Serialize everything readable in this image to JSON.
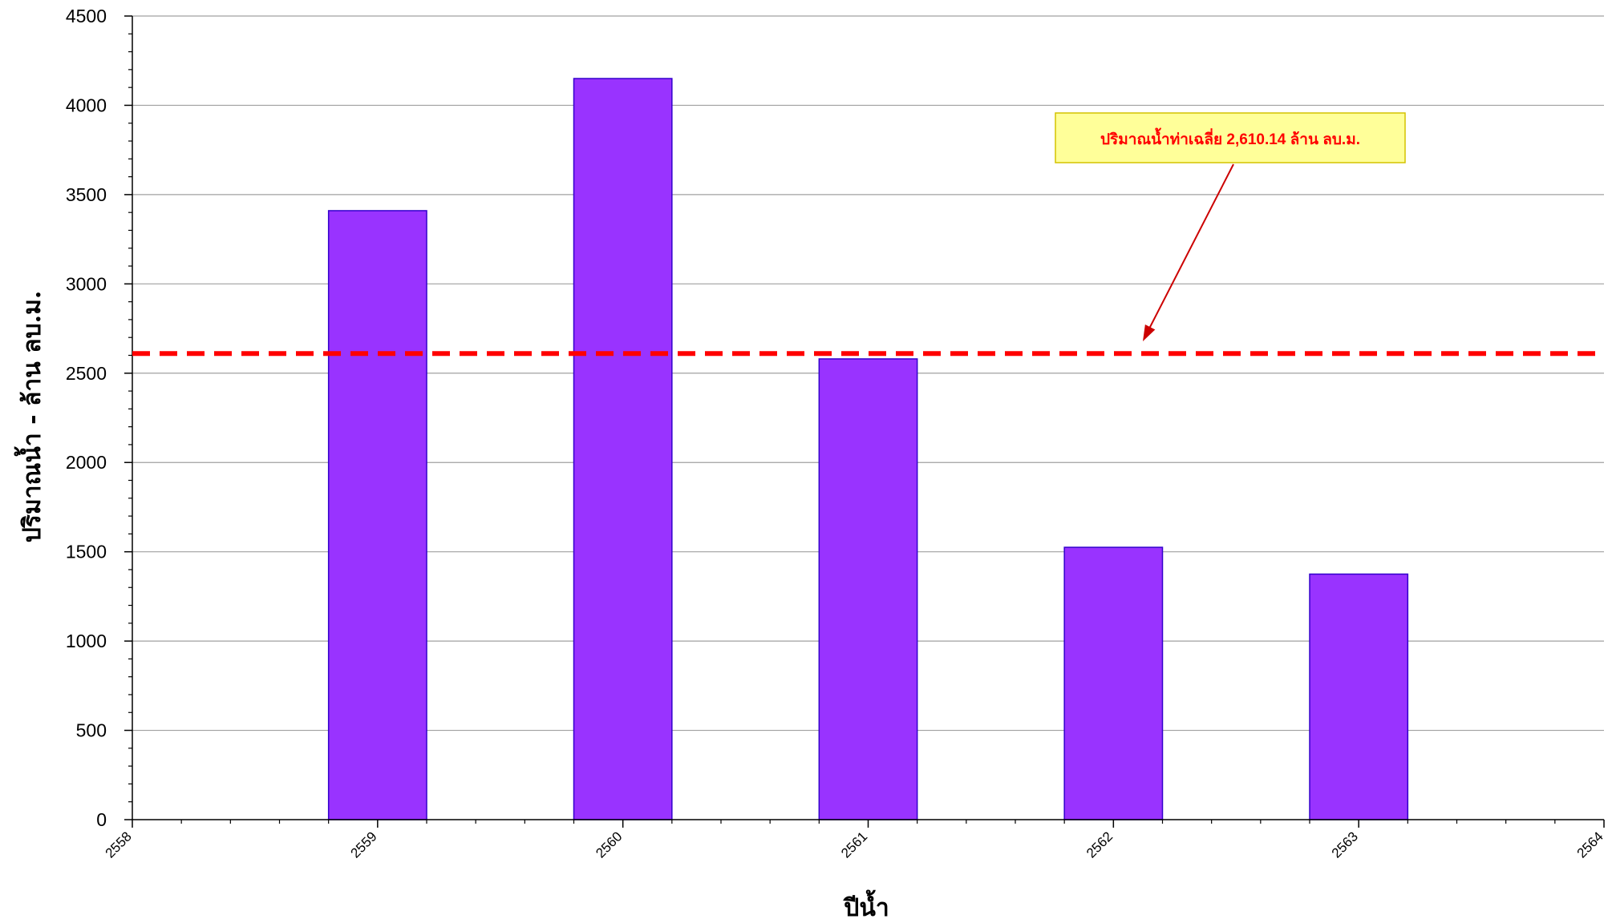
{
  "chart_data": {
    "type": "bar",
    "xlabel": "ปีน้ำ",
    "ylabel": "ปริมาณน้ำ  -  ล้าน ลบ.ม.",
    "xlim": [
      2558,
      2564
    ],
    "ylim": [
      0,
      4500
    ],
    "x_ticks": [
      2558,
      2559,
      2560,
      2561,
      2562,
      2563,
      2564
    ],
    "y_ticks": [
      0,
      500,
      1000,
      1500,
      2000,
      2500,
      3000,
      3500,
      4000,
      4500
    ],
    "grid": true,
    "series": [
      {
        "x": [
          2559,
          2560,
          2561,
          2562,
          2563
        ],
        "values": [
          3410,
          4150,
          2580,
          1525,
          1375
        ],
        "color": "#9933ff"
      }
    ],
    "reference_line": {
      "value": 2610.14,
      "color": "#ff0000",
      "style": "dashed"
    },
    "annotation": {
      "text": "ปริมาณน้ำท่าเฉลี่ย 2,610.14 ล้าน ลบ.ม.",
      "text_color": "#ff0000",
      "box_fill": "#ffff99",
      "arrow_color": "#cc0000"
    }
  }
}
